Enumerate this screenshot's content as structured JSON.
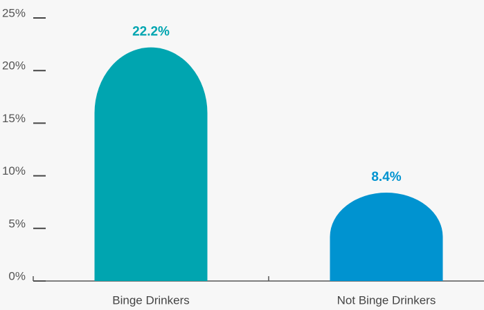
{
  "chart_data": {
    "type": "bar",
    "categories": [
      "Binge Drinkers",
      "Not Binge Drinkers"
    ],
    "values": [
      22.2,
      8.4
    ],
    "value_labels": [
      "22.2%",
      "8.4%"
    ],
    "colors": [
      "#00a5b0",
      "#0093d0"
    ],
    "ylim": [
      0,
      25
    ],
    "yticks": [
      {
        "value": 0,
        "label": "0%"
      },
      {
        "value": 5,
        "label": "5%"
      },
      {
        "value": 10,
        "label": "10%"
      },
      {
        "value": 15,
        "label": "15%"
      },
      {
        "value": 20,
        "label": "20%"
      },
      {
        "value": 25,
        "label": "25%"
      }
    ]
  }
}
